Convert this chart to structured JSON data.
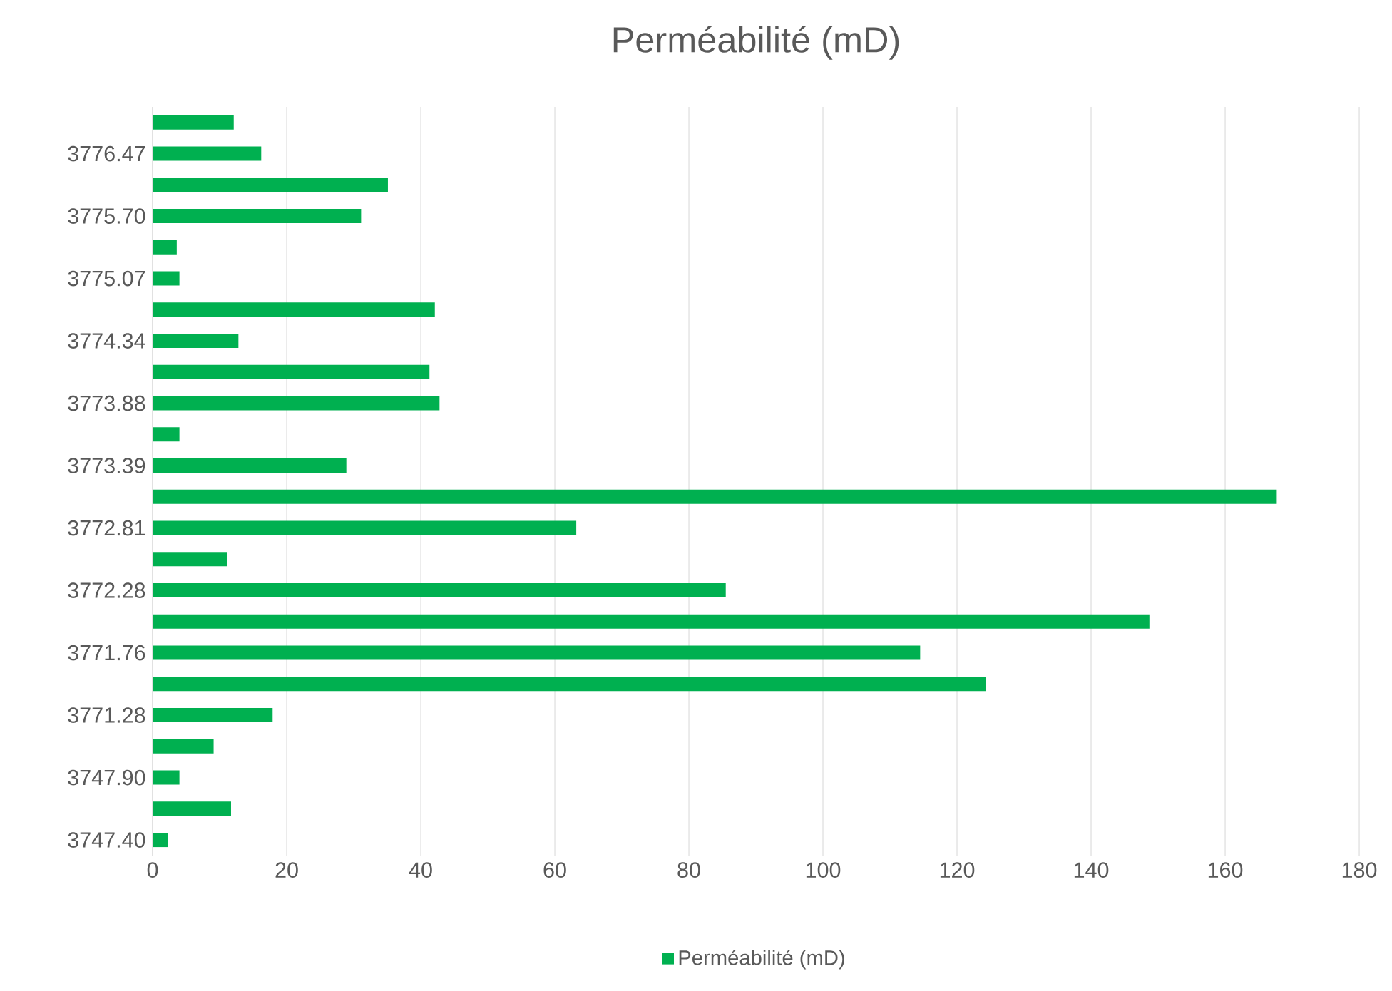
{
  "chart_data": {
    "type": "bar",
    "orientation": "horizontal",
    "title": "Perméabilité (mD)",
    "categories": [
      null,
      "3776.47",
      null,
      "3775.70",
      null,
      "3775.07",
      null,
      "3774.34",
      null,
      "3773.88",
      null,
      "3773.39",
      null,
      "3772.81",
      null,
      "3772.28",
      null,
      "3771.76",
      null,
      "3771.28",
      null,
      "3747.90",
      null,
      "3747.40"
    ],
    "series": [
      {
        "name": "Perméabilité (mD)",
        "color": "#00b050",
        "values": [
          12.1,
          16.2,
          35.1,
          31.1,
          3.6,
          4.0,
          42.1,
          12.8,
          41.3,
          42.8,
          4.0,
          28.9,
          167.7,
          63.2,
          11.1,
          85.5,
          148.7,
          114.5,
          124.3,
          17.9,
          9.1,
          4.0,
          11.7,
          2.3
        ]
      }
    ],
    "xlim": [
      0,
      180
    ],
    "xticks": [
      0,
      20,
      40,
      60,
      80,
      100,
      120,
      140,
      160,
      180
    ],
    "grid": "x",
    "legend": "bottom"
  }
}
